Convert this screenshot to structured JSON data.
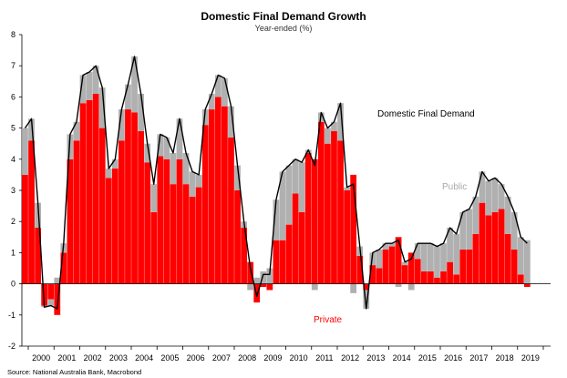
{
  "chart_data": {
    "type": "bar",
    "stacked": true,
    "title": "Domestic Final Demand Growth",
    "subtitle": "Year-ended (%)",
    "source": "Source: National Australia Bank, Macrobond",
    "ylim": [
      -2,
      8
    ],
    "yticks": [
      "-2",
      "-1",
      "0",
      "1",
      "2",
      "3",
      "4",
      "5",
      "6",
      "7",
      "8"
    ],
    "xticks": [
      "2000",
      "2001",
      "2002",
      "2003",
      "2004",
      "2005",
      "2006",
      "2007",
      "2008",
      "2009",
      "2010",
      "2011",
      "2012",
      "2013",
      "2014",
      "2015",
      "2016",
      "2017",
      "2018",
      "2019"
    ],
    "first_period": "1999 Q4",
    "frequency": "quarterly",
    "series": [
      {
        "name": "Private",
        "color": "#ff0000",
        "values": [
          3.5,
          4.6,
          1.8,
          -0.7,
          -0.5,
          -1.0,
          1.0,
          4.0,
          4.6,
          5.8,
          5.9,
          6.1,
          5.0,
          3.4,
          3.7,
          4.6,
          5.6,
          5.5,
          4.9,
          3.9,
          2.3,
          4.1,
          4.0,
          3.2,
          4.0,
          3.2,
          2.8,
          3.1,
          5.1,
          5.6,
          6.0,
          5.7,
          4.7,
          3.0,
          1.8,
          0.7,
          -0.6,
          -0.1,
          -0.2,
          1.4,
          1.4,
          1.9,
          2.9,
          2.3,
          4.2,
          4.0,
          5.2,
          4.5,
          4.9,
          4.6,
          3.0,
          3.5,
          0.9,
          -0.2,
          0.6,
          0.5,
          1.1,
          1.2,
          1.5,
          0.6,
          1.0,
          0.8,
          0.4,
          0.4,
          0.2,
          0.4,
          0.7,
          0.3,
          1.1,
          1.1,
          1.6,
          2.6,
          2.2,
          2.3,
          2.4,
          1.6,
          1.1,
          0.3,
          -0.1
        ],
        "label": "Private"
      },
      {
        "name": "Public",
        "color": "#b0b0b0",
        "values": [
          1.5,
          0.7,
          0.8,
          -0.05,
          -0.2,
          0.2,
          0.3,
          0.8,
          0.6,
          0.9,
          0.9,
          0.9,
          1.3,
          0.3,
          0.3,
          1.0,
          0.8,
          1.8,
          1.2,
          0.6,
          0.9,
          0.7,
          0.7,
          1.0,
          1.3,
          1.0,
          0.8,
          0.4,
          0.5,
          0.5,
          0.7,
          0.9,
          1.0,
          0.8,
          0.2,
          -0.2,
          0.2,
          0.4,
          0.5,
          1.3,
          2.2,
          1.9,
          1.1,
          1.6,
          0.1,
          -0.2,
          0.3,
          0.5,
          0.3,
          1.2,
          0.1,
          -0.3,
          0.3,
          -0.6,
          0.4,
          0.6,
          0.2,
          0.1,
          -0.1,
          0.1,
          -0.2,
          0.5,
          0.9,
          0.9,
          1.0,
          0.9,
          1.1,
          1.3,
          1.2,
          1.3,
          1.2,
          1.0,
          1.1,
          1.1,
          0.8,
          1.2,
          1.2,
          1.2,
          1.4
        ],
        "label": "Public"
      }
    ],
    "line_series": {
      "name": "Domestic Final Demand",
      "color": "#000000",
      "values": [
        5.0,
        5.3,
        2.6,
        -0.75,
        -0.7,
        -0.8,
        1.3,
        4.8,
        5.2,
        6.7,
        6.8,
        7.0,
        6.3,
        3.7,
        4.0,
        5.6,
        6.4,
        7.3,
        6.1,
        4.5,
        3.2,
        4.8,
        4.7,
        4.2,
        5.3,
        4.2,
        3.6,
        3.5,
        5.6,
        6.1,
        6.7,
        6.6,
        5.7,
        3.8,
        2.0,
        0.5,
        -0.4,
        0.3,
        0.3,
        2.7,
        3.6,
        3.8,
        4.0,
        3.9,
        4.3,
        3.8,
        5.5,
        5.0,
        5.2,
        5.8,
        3.1,
        3.2,
        1.2,
        -0.8,
        1.0,
        1.1,
        1.3,
        1.3,
        1.4,
        0.7,
        0.8,
        1.3,
        1.3,
        1.3,
        1.2,
        1.3,
        1.8,
        1.6,
        2.3,
        2.4,
        2.8,
        3.6,
        3.3,
        3.4,
        3.2,
        2.8,
        2.3,
        1.5,
        1.3
      ],
      "label": "Domestic Final Demand"
    },
    "legend": "inline labels"
  }
}
